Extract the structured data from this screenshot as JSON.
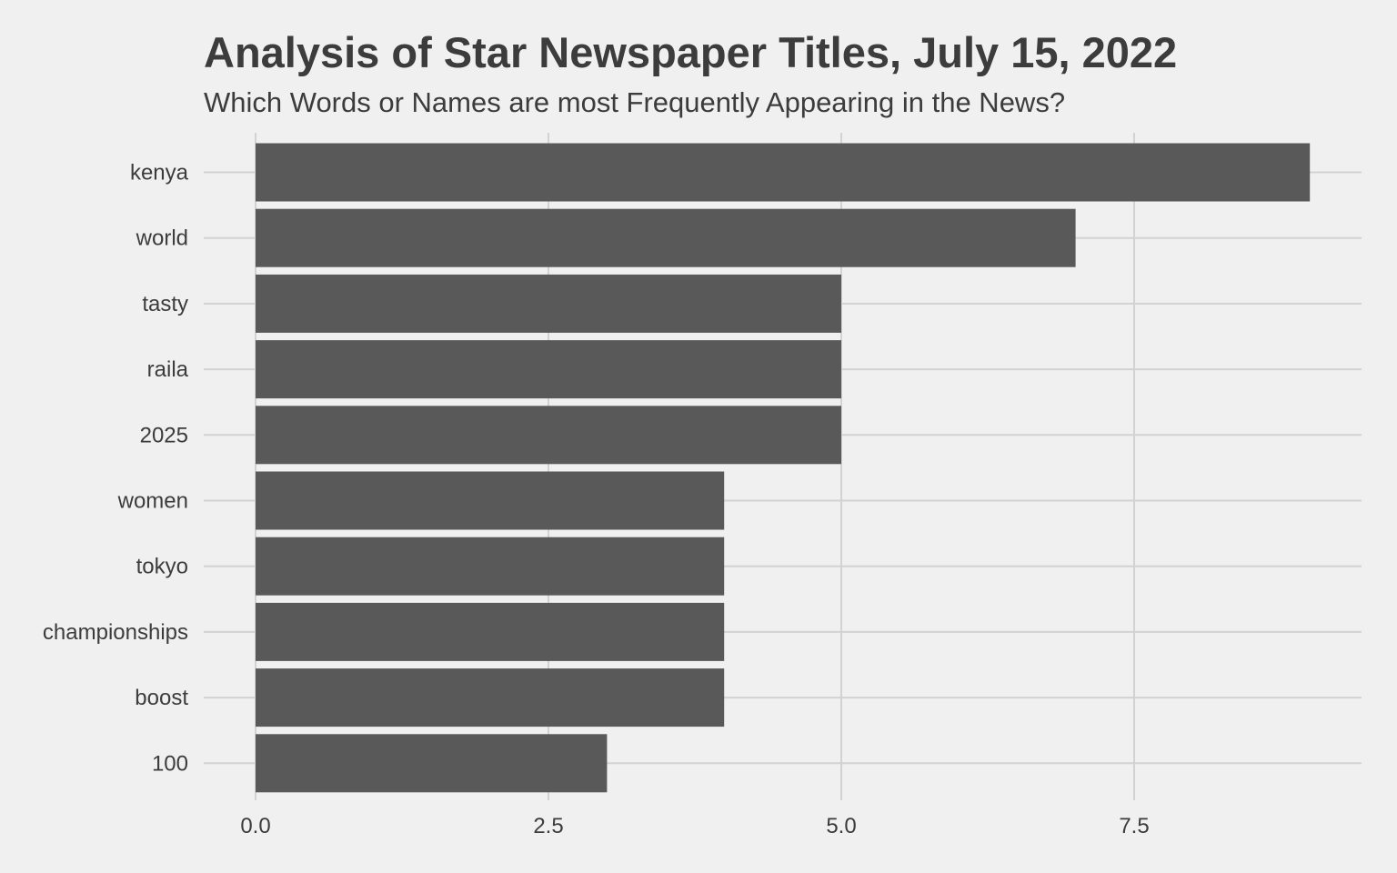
{
  "chart_data": {
    "type": "bar",
    "orientation": "horizontal",
    "title": "Analysis of Star Newspaper Titles, July 15, 2022",
    "subtitle": "Which Words or Names are most Frequently Appearing in the News?",
    "categories": [
      "kenya",
      "world",
      "tasty",
      "raila",
      "2025",
      "women",
      "tokyo",
      "championships",
      "boost",
      "100"
    ],
    "values": [
      9,
      7,
      5,
      5,
      5,
      4,
      4,
      4,
      4,
      3
    ],
    "x_ticks": [
      "0.0",
      "2.5",
      "5.0",
      "7.5"
    ],
    "x_tick_values": [
      0,
      2.5,
      5,
      7.5
    ],
    "xlim": [
      0,
      9
    ],
    "xlabel": "",
    "ylabel": "",
    "grid": true,
    "legend": "none",
    "colors": {
      "bar": "#595959",
      "background": "#f0f0f0",
      "grid": "#d2d2d2",
      "text": "#3c3c3c"
    }
  }
}
